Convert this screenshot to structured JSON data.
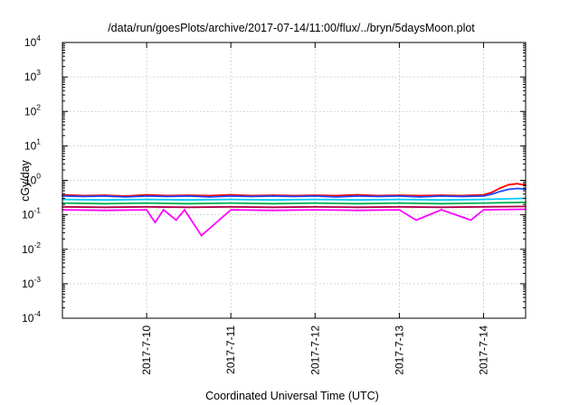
{
  "chart_data": {
    "type": "line",
    "title": "/data/run/goesPlots/archive/2017-07-14/11:00/flux/../bryn/5daysMoon.plot",
    "xlabel": "Coordinated Universal Time (UTC)",
    "ylabel": "cGy/day",
    "yscale": "log",
    "ylim": [
      0.0001,
      10000
    ],
    "xlim": [
      0,
      5.5
    ],
    "grid": true,
    "y_ticks": [
      {
        "mantissa": "10",
        "exponent": "-4",
        "value": 0.0001
      },
      {
        "mantissa": "10",
        "exponent": "-3",
        "value": 0.001
      },
      {
        "mantissa": "10",
        "exponent": "-2",
        "value": 0.01
      },
      {
        "mantissa": "10",
        "exponent": "-1",
        "value": 0.1
      },
      {
        "mantissa": "10",
        "exponent": "0",
        "value": 1
      },
      {
        "mantissa": "10",
        "exponent": "1",
        "value": 10
      },
      {
        "mantissa": "10",
        "exponent": "2",
        "value": 100
      },
      {
        "mantissa": "10",
        "exponent": "3",
        "value": 1000
      },
      {
        "mantissa": "10",
        "exponent": "4",
        "value": 10000
      }
    ],
    "x_ticks": [
      {
        "label": "2017-7-10",
        "x": 1
      },
      {
        "label": "2017-7-11",
        "x": 2
      },
      {
        "label": "2017-7-12",
        "x": 3
      },
      {
        "label": "2017-7-13",
        "x": 4
      },
      {
        "label": "2017-7-14",
        "x": 5
      }
    ],
    "series": [
      {
        "color": "#ff0000",
        "x": [
          0,
          0.25,
          0.5,
          0.75,
          1,
          1.25,
          1.5,
          1.75,
          2,
          2.25,
          2.5,
          2.75,
          3,
          3.25,
          3.5,
          3.75,
          4,
          4.25,
          4.5,
          4.75,
          5,
          5.1,
          5.2,
          5.3,
          5.4,
          5.5
        ],
        "values": [
          0.38,
          0.36,
          0.37,
          0.35,
          0.38,
          0.36,
          0.37,
          0.36,
          0.38,
          0.36,
          0.37,
          0.36,
          0.37,
          0.36,
          0.38,
          0.36,
          0.37,
          0.36,
          0.37,
          0.36,
          0.38,
          0.45,
          0.6,
          0.75,
          0.8,
          0.72
        ]
      },
      {
        "color": "#1a4aff",
        "x": [
          0,
          0.25,
          0.5,
          0.75,
          1,
          1.25,
          1.5,
          1.75,
          2,
          2.25,
          2.5,
          2.75,
          3,
          3.25,
          3.5,
          3.75,
          4,
          4.25,
          4.5,
          4.75,
          5,
          5.1,
          5.2,
          5.3,
          5.4,
          5.5
        ],
        "values": [
          0.35,
          0.34,
          0.35,
          0.33,
          0.35,
          0.34,
          0.35,
          0.33,
          0.35,
          0.34,
          0.35,
          0.34,
          0.35,
          0.33,
          0.35,
          0.34,
          0.35,
          0.33,
          0.35,
          0.34,
          0.35,
          0.4,
          0.48,
          0.55,
          0.58,
          0.56
        ]
      },
      {
        "color": "#00c8ff",
        "x": [
          0,
          0.5,
          1,
          1.5,
          2,
          2.5,
          3,
          3.5,
          4,
          4.5,
          5,
          5.5
        ],
        "values": [
          0.28,
          0.27,
          0.28,
          0.27,
          0.28,
          0.27,
          0.28,
          0.27,
          0.28,
          0.27,
          0.28,
          0.3
        ]
      },
      {
        "color": "#00b050",
        "x": [
          0,
          0.5,
          1,
          1.5,
          2,
          2.5,
          3,
          3.5,
          4,
          4.5,
          5,
          5.5
        ],
        "values": [
          0.22,
          0.21,
          0.22,
          0.21,
          0.22,
          0.21,
          0.22,
          0.21,
          0.22,
          0.21,
          0.22,
          0.23
        ]
      },
      {
        "color": "#b0004a",
        "x": [
          0,
          0.5,
          1,
          1.5,
          2,
          2.5,
          3,
          3.5,
          4,
          4.5,
          5,
          5.5
        ],
        "values": [
          0.17,
          0.165,
          0.17,
          0.165,
          0.17,
          0.165,
          0.17,
          0.165,
          0.17,
          0.165,
          0.17,
          0.175
        ]
      },
      {
        "color": "#ff00ff",
        "x": [
          0,
          0.5,
          1,
          1.1,
          1.2,
          1.35,
          1.45,
          1.65,
          2,
          2.5,
          3,
          3.5,
          4,
          4.2,
          4.5,
          4.85,
          5,
          5.5
        ],
        "values": [
          0.14,
          0.135,
          0.14,
          0.06,
          0.14,
          0.07,
          0.14,
          0.025,
          0.14,
          0.135,
          0.14,
          0.135,
          0.14,
          0.07,
          0.14,
          0.07,
          0.14,
          0.145
        ]
      }
    ]
  }
}
